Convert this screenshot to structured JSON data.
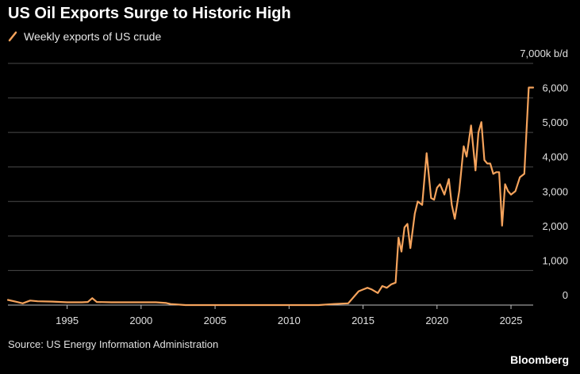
{
  "title": "US Oil Exports Surge to Historic High",
  "source": "Source: US Energy Information Administration",
  "brand": "Bloomberg",
  "colors": {
    "background": "#000000",
    "line": "#f5a35c",
    "grid": "#4a4a4a",
    "text": "#e0e0e0"
  },
  "chart_data": {
    "type": "line",
    "title": "US Oil Exports Surge to Historic High",
    "unit_label": "7,000k b/d",
    "xlim": [
      1991,
      2026.5
    ],
    "ylim": [
      0,
      7000
    ],
    "x_ticks": [
      {
        "value": 1995,
        "label": "1995"
      },
      {
        "value": 2000,
        "label": "2000"
      },
      {
        "value": 2005,
        "label": "2005"
      },
      {
        "value": 2010,
        "label": "2010"
      },
      {
        "value": 2015,
        "label": "2015"
      },
      {
        "value": 2020,
        "label": "2020"
      },
      {
        "value": 2025,
        "label": "2025"
      }
    ],
    "y_ticks": [
      {
        "value": 0,
        "label": "0"
      },
      {
        "value": 1000,
        "label": "1,000"
      },
      {
        "value": 2000,
        "label": "2,000"
      },
      {
        "value": 3000,
        "label": "3,000"
      },
      {
        "value": 4000,
        "label": "4,000"
      },
      {
        "value": 5000,
        "label": "5,000"
      },
      {
        "value": 6000,
        "label": "6,000"
      },
      {
        "value": 7000,
        "label": "7,000k b/d"
      }
    ],
    "grid": true,
    "legend_position": "top-left",
    "series": [
      {
        "name": "Weekly exports of US crude",
        "color": "#f5a35c",
        "x": [
          1991.0,
          1991.5,
          1992.0,
          1992.5,
          1993.0,
          1994.0,
          1995.0,
          1996.0,
          1996.4,
          1996.7,
          1997.0,
          1998.0,
          1999.0,
          2000.0,
          2001.0,
          2001.7,
          2002.0,
          2003.0,
          2004.0,
          2005.0,
          2006.0,
          2007.0,
          2008.0,
          2009.0,
          2010.0,
          2011.0,
          2012.0,
          2013.0,
          2014.0,
          2014.3,
          2014.7,
          2015.0,
          2015.3,
          2015.6,
          2016.0,
          2016.3,
          2016.6,
          2016.9,
          2017.2,
          2017.4,
          2017.6,
          2017.8,
          2018.0,
          2018.2,
          2018.5,
          2018.7,
          2019.0,
          2019.3,
          2019.6,
          2019.8,
          2020.0,
          2020.2,
          2020.5,
          2020.8,
          2021.0,
          2021.2,
          2021.5,
          2021.8,
          2022.0,
          2022.3,
          2022.6,
          2022.8,
          2023.0,
          2023.2,
          2023.4,
          2023.6,
          2023.8,
          2024.0,
          2024.2,
          2024.4,
          2024.6,
          2024.8,
          2025.0,
          2025.3,
          2025.6,
          2025.9,
          2026.2,
          2026.5
        ],
        "y": [
          150,
          100,
          50,
          130,
          110,
          100,
          80,
          80,
          90,
          200,
          90,
          80,
          80,
          80,
          80,
          60,
          30,
          0,
          0,
          0,
          0,
          0,
          0,
          0,
          0,
          0,
          0,
          30,
          50,
          200,
          400,
          450,
          500,
          450,
          350,
          550,
          500,
          600,
          650,
          1950,
          1550,
          2250,
          2350,
          1650,
          2650,
          3000,
          2900,
          4400,
          3100,
          3050,
          3400,
          3500,
          3200,
          3650,
          2900,
          2500,
          3300,
          4600,
          4300,
          5200,
          3900,
          5000,
          5300,
          4200,
          4100,
          4100,
          3800,
          3850,
          3850,
          2300,
          3500,
          3300,
          3200,
          3300,
          3700,
          3800,
          6300,
          6300
        ]
      }
    ]
  }
}
